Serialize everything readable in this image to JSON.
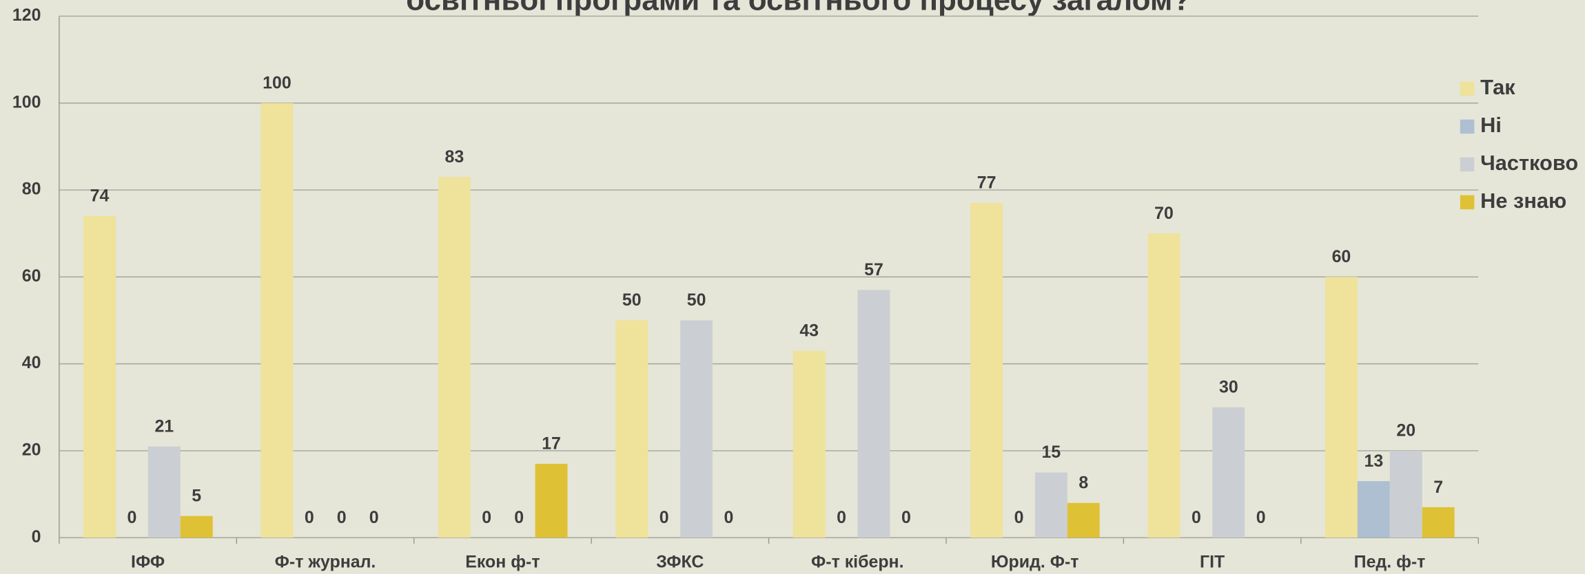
{
  "chart_data": {
    "type": "bar",
    "title": "освітньої програми та освітнього процесу загалом?",
    "categories": [
      "ІФФ",
      "Ф-т журнал.",
      "Екон ф-т",
      "ЗФКС",
      "Ф-т кіберн.",
      "Юрид. Ф-т",
      "ГІТ",
      "Пед. ф-т"
    ],
    "series": [
      {
        "name": "Так",
        "color": "#efe29a",
        "values": [
          74,
          100,
          83,
          50,
          43,
          77,
          70,
          60
        ]
      },
      {
        "name": "Ні",
        "color": "#adbfd1",
        "values": [
          0,
          0,
          0,
          0,
          0,
          0,
          0,
          13
        ]
      },
      {
        "name": "Частково",
        "color": "#cbcfd3",
        "values": [
          21,
          0,
          0,
          50,
          57,
          15,
          30,
          20
        ]
      },
      {
        "name": "Не знаю",
        "color": "#dfc136",
        "values": [
          5,
          0,
          17,
          0,
          0,
          8,
          0,
          7
        ]
      }
    ],
    "ylim": [
      0,
      120
    ],
    "yticks": [
      0,
      20,
      40,
      60,
      80,
      100,
      120
    ],
    "grid": true,
    "legend": "right",
    "data_labels": true
  }
}
